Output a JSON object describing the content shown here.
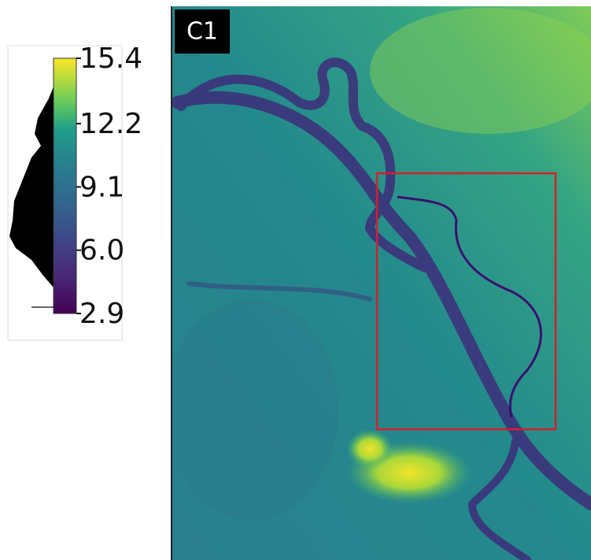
{
  "panel": {
    "label": "C1"
  },
  "colorbar": {
    "lim": [
      2.9,
      15.4
    ],
    "ticks": [
      2.9,
      {
        "value": 6,
        "label": "6.0"
      },
      9.1,
      12.2,
      15.4
    ]
  }
}
